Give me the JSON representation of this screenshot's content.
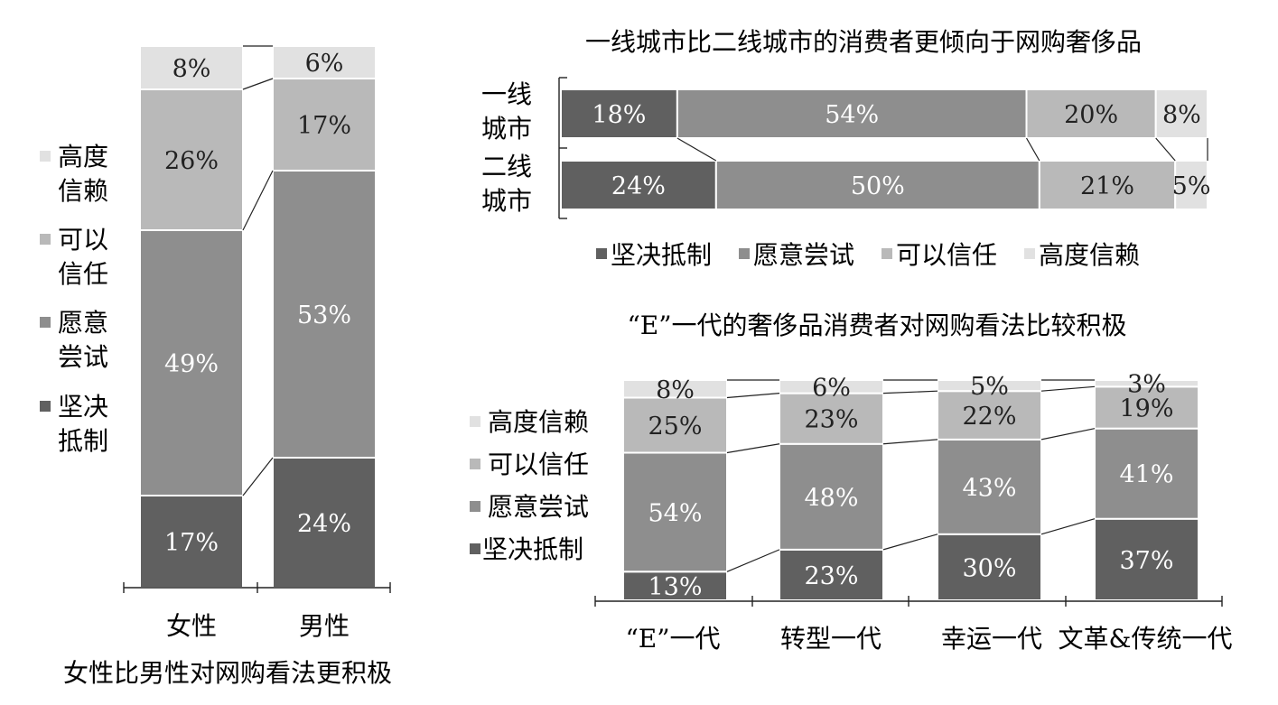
{
  "palette": {
    "resist": "#606060",
    "try": "#8e8e8e",
    "trust": "#b9b9b9",
    "high": "#e1e1e1",
    "axis": "#222222"
  },
  "chart_data": [
    {
      "id": "gender",
      "type": "bar",
      "stacked": true,
      "orientation": "vertical",
      "title": "女性比男性对网购看法更积极",
      "categories": [
        "女性",
        "男性"
      ],
      "series": [
        {
          "name": "坚决抵制",
          "key": "resist",
          "values": [
            17,
            24
          ]
        },
        {
          "name": "愿意尝试",
          "key": "try",
          "values": [
            49,
            53
          ]
        },
        {
          "name": "可以信任",
          "key": "trust",
          "values": [
            26,
            17
          ]
        },
        {
          "name": "高度信赖",
          "key": "high",
          "values": [
            8,
            6
          ]
        }
      ],
      "legend": {
        "placement": "left",
        "order": [
          "高度",
          "信赖",
          "可以",
          "信任",
          "愿意",
          "尝试",
          "坚决",
          "抵制"
        ]
      },
      "ylim": [
        0,
        100
      ],
      "grid": false
    },
    {
      "id": "city",
      "type": "bar",
      "stacked": true,
      "orientation": "horizontal",
      "title": "一线城市比二线城市的消费者更倾向于网购奢侈品",
      "categories": [
        [
          "一线",
          "城市"
        ],
        [
          "二线",
          "城市"
        ]
      ],
      "series": [
        {
          "name": "坚决抵制",
          "key": "resist",
          "values": [
            18,
            24
          ]
        },
        {
          "name": "愿意尝试",
          "key": "try",
          "values": [
            54,
            50
          ]
        },
        {
          "name": "可以信任",
          "key": "trust",
          "values": [
            20,
            21
          ]
        },
        {
          "name": "高度信赖",
          "key": "high",
          "values": [
            8,
            5
          ]
        }
      ],
      "legend": {
        "placement": "bottom"
      },
      "xlim": [
        0,
        100
      ],
      "grid": false
    },
    {
      "id": "generation",
      "type": "bar",
      "stacked": true,
      "orientation": "vertical",
      "title": "“E”一代的奢侈品消费者对网购看法比较积极",
      "categories": [
        "“E”一代",
        "转型一代",
        "幸运一代",
        "文革&传统一代"
      ],
      "series": [
        {
          "name": "坚决抵制",
          "key": "resist",
          "values": [
            13,
            23,
            30,
            37
          ]
        },
        {
          "name": "愿意尝试",
          "key": "try",
          "values": [
            54,
            48,
            43,
            41
          ]
        },
        {
          "name": "可以信任",
          "key": "trust",
          "values": [
            25,
            23,
            22,
            19
          ]
        },
        {
          "name": "高度信赖",
          "key": "high",
          "values": [
            8,
            6,
            5,
            3
          ]
        }
      ],
      "legend": {
        "placement": "left"
      },
      "ylim": [
        0,
        100
      ],
      "grid": false
    }
  ]
}
